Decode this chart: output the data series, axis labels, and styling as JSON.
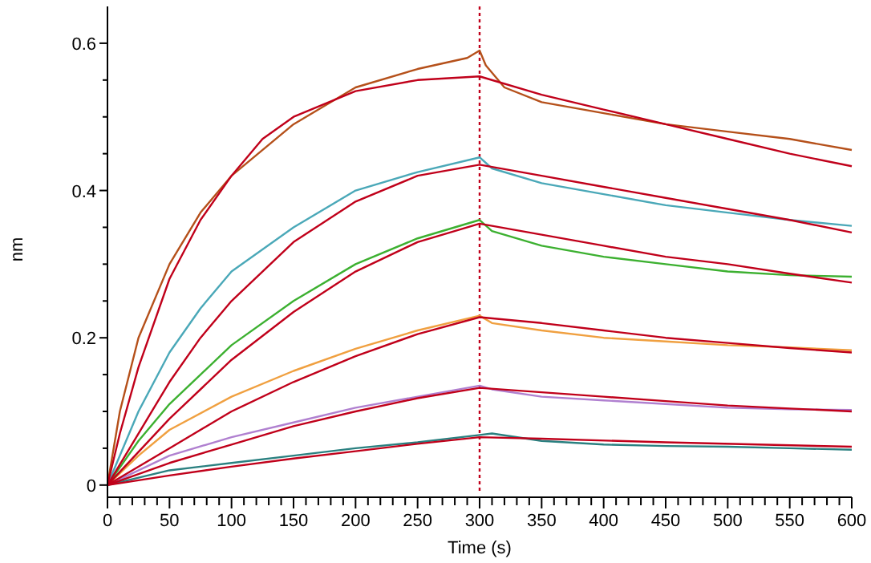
{
  "chart_data": {
    "type": "line",
    "xlabel": "Time (s)",
    "ylabel": "nm",
    "xlim": [
      0,
      600
    ],
    "ylim": [
      -0.01,
      0.65
    ],
    "xticks": [
      0,
      {
        "value": 10,
        "label": null
      },
      {
        "value": 20,
        "label": null
      },
      {
        "value": 30,
        "label": null
      },
      {
        "value": 40,
        "label": null
      },
      50,
      {
        "value": 60,
        "label": null
      },
      {
        "value": 70,
        "label": null
      },
      {
        "value": 80,
        "label": null
      },
      {
        "value": 90,
        "label": null
      },
      100,
      {
        "value": 110,
        "label": null
      },
      {
        "value": 120,
        "label": null
      },
      {
        "value": 130,
        "label": null
      },
      {
        "value": 140,
        "label": null
      },
      150,
      {
        "value": 160,
        "label": null
      },
      {
        "value": 170,
        "label": null
      },
      {
        "value": 180,
        "label": null
      },
      {
        "value": 190,
        "label": null
      },
      200,
      {
        "value": 210,
        "label": null
      },
      {
        "value": 220,
        "label": null
      },
      {
        "value": 230,
        "label": null
      },
      {
        "value": 240,
        "label": null
      },
      250,
      {
        "value": 260,
        "label": null
      },
      {
        "value": 270,
        "label": null
      },
      {
        "value": 280,
        "label": null
      },
      {
        "value": 290,
        "label": null
      },
      300,
      {
        "value": 310,
        "label": null
      },
      {
        "value": 320,
        "label": null
      },
      {
        "value": 330,
        "label": null
      },
      {
        "value": 340,
        "label": null
      },
      350,
      {
        "value": 360,
        "label": null
      },
      {
        "value": 370,
        "label": null
      },
      {
        "value": 380,
        "label": null
      },
      {
        "value": 390,
        "label": null
      },
      400,
      {
        "value": 410,
        "label": null
      },
      {
        "value": 420,
        "label": null
      },
      {
        "value": 430,
        "label": null
      },
      {
        "value": 440,
        "label": null
      },
      450,
      {
        "value": 460,
        "label": null
      },
      {
        "value": 470,
        "label": null
      },
      {
        "value": 480,
        "label": null
      },
      {
        "value": 490,
        "label": null
      },
      500,
      {
        "value": 510,
        "label": null
      },
      {
        "value": 520,
        "label": null
      },
      {
        "value": 530,
        "label": null
      },
      {
        "value": 540,
        "label": null
      },
      550,
      {
        "value": 560,
        "label": null
      },
      {
        "value": 570,
        "label": null
      },
      {
        "value": 580,
        "label": null
      },
      {
        "value": 590,
        "label": null
      },
      600
    ],
    "yticks": [
      0,
      {
        "value": 0.05,
        "label": null
      },
      {
        "value": 0.1,
        "label": null
      },
      {
        "value": 0.15,
        "label": null
      },
      0.2,
      {
        "value": 0.25,
        "label": null
      },
      {
        "value": 0.3,
        "label": null
      },
      {
        "value": 0.35,
        "label": null
      },
      0.4,
      {
        "value": 0.45,
        "label": null
      },
      {
        "value": 0.5,
        "label": null
      },
      {
        "value": 0.55,
        "label": null
      },
      0.6
    ],
    "grid": false,
    "marker": "none",
    "line_style": "solid",
    "ref_lines": [
      {
        "axis": "x",
        "value": 300,
        "label": null,
        "color": "#c0001a",
        "line_style": "dotted"
      }
    ],
    "series": [
      {
        "color": "#b5501a",
        "x": [
          0,
          10,
          25,
          50,
          75,
          100,
          150,
          200,
          250,
          290,
          300,
          305,
          320,
          350,
          400,
          450,
          500,
          550,
          600
        ],
        "values": [
          0,
          0.1,
          0.2,
          0.3,
          0.37,
          0.42,
          0.49,
          0.54,
          0.565,
          0.58,
          0.59,
          0.57,
          0.54,
          0.52,
          0.505,
          0.49,
          0.48,
          0.47,
          0.455
        ]
      },
      {
        "color": "#4aa8b8",
        "x": [
          0,
          25,
          50,
          75,
          100,
          150,
          200,
          250,
          300,
          310,
          350,
          400,
          450,
          500,
          550,
          600
        ],
        "values": [
          0,
          0.1,
          0.18,
          0.24,
          0.29,
          0.35,
          0.4,
          0.425,
          0.445,
          0.43,
          0.41,
          0.395,
          0.38,
          0.37,
          0.36,
          0.352
        ]
      },
      {
        "color": "#3cb030",
        "x": [
          0,
          25,
          50,
          75,
          100,
          150,
          200,
          250,
          300,
          310,
          350,
          400,
          450,
          500,
          550,
          600
        ],
        "values": [
          0,
          0.06,
          0.11,
          0.15,
          0.19,
          0.25,
          0.3,
          0.335,
          0.36,
          0.345,
          0.325,
          0.31,
          0.3,
          0.29,
          0.285,
          0.283
        ]
      },
      {
        "color": "#f0a040",
        "x": [
          0,
          25,
          50,
          100,
          150,
          200,
          250,
          300,
          310,
          350,
          400,
          450,
          500,
          550,
          600
        ],
        "values": [
          0,
          0.04,
          0.075,
          0.12,
          0.155,
          0.185,
          0.21,
          0.23,
          0.22,
          0.21,
          0.2,
          0.195,
          0.19,
          0.187,
          0.183
        ]
      },
      {
        "color": "#b080d0",
        "x": [
          0,
          50,
          100,
          150,
          200,
          250,
          300,
          310,
          350,
          400,
          450,
          500,
          550,
          600
        ],
        "values": [
          0,
          0.04,
          0.065,
          0.085,
          0.105,
          0.12,
          0.135,
          0.13,
          0.12,
          0.115,
          0.11,
          0.105,
          0.103,
          0.102
        ]
      },
      {
        "color": "#2a8080",
        "x": [
          0,
          50,
          100,
          150,
          200,
          250,
          300,
          310,
          350,
          400,
          450,
          500,
          550,
          600
        ],
        "values": [
          0,
          0.02,
          0.03,
          0.04,
          0.05,
          0.058,
          0.068,
          0.07,
          0.06,
          0.055,
          0.053,
          0.052,
          0.05,
          0.048
        ]
      },
      {
        "color": "#c0001a",
        "x": [
          0,
          10,
          25,
          50,
          75,
          100,
          125,
          150,
          200,
          250,
          300,
          350,
          400,
          450,
          500,
          550,
          600
        ],
        "values": [
          0,
          0.07,
          0.16,
          0.28,
          0.36,
          0.42,
          0.47,
          0.5,
          0.535,
          0.55,
          0.555,
          0.53,
          0.51,
          0.49,
          0.47,
          0.45,
          0.433
        ]
      },
      {
        "color": "#c0001a",
        "x": [
          0,
          25,
          50,
          75,
          100,
          150,
          200,
          250,
          300,
          350,
          400,
          450,
          500,
          550,
          600
        ],
        "values": [
          0,
          0.07,
          0.14,
          0.2,
          0.25,
          0.33,
          0.385,
          0.42,
          0.435,
          0.42,
          0.405,
          0.39,
          0.375,
          0.36,
          0.343
        ]
      },
      {
        "color": "#c0001a",
        "x": [
          0,
          50,
          100,
          150,
          200,
          250,
          300,
          350,
          400,
          450,
          500,
          550,
          600
        ],
        "values": [
          0,
          0.09,
          0.17,
          0.235,
          0.29,
          0.33,
          0.355,
          0.34,
          0.325,
          0.31,
          0.3,
          0.287,
          0.275
        ]
      },
      {
        "color": "#c0001a",
        "x": [
          0,
          50,
          100,
          150,
          200,
          250,
          300,
          350,
          400,
          450,
          500,
          550,
          600
        ],
        "values": [
          0,
          0.05,
          0.1,
          0.14,
          0.175,
          0.205,
          0.228,
          0.22,
          0.21,
          0.2,
          0.193,
          0.186,
          0.18
        ]
      },
      {
        "color": "#c0001a",
        "x": [
          0,
          50,
          100,
          150,
          200,
          250,
          300,
          350,
          400,
          450,
          500,
          550,
          600
        ],
        "values": [
          0,
          0.03,
          0.055,
          0.08,
          0.1,
          0.118,
          0.132,
          0.126,
          0.12,
          0.114,
          0.108,
          0.104,
          0.1
        ]
      },
      {
        "color": "#c0001a",
        "x": [
          0,
          50,
          100,
          150,
          200,
          250,
          300,
          350,
          450,
          600
        ],
        "values": [
          0,
          0.013,
          0.025,
          0.036,
          0.046,
          0.056,
          0.065,
          0.063,
          0.058,
          0.052
        ]
      }
    ]
  }
}
